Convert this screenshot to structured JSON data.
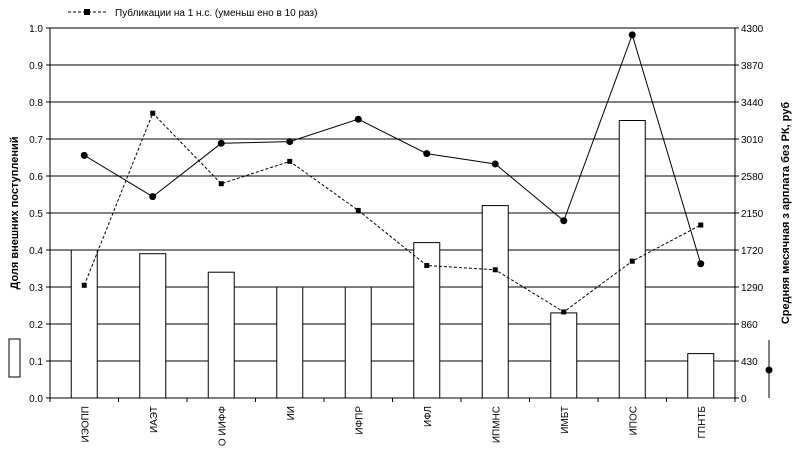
{
  "chart_data": {
    "type": "bar",
    "categories": [
      "ИЭОПП",
      "ИАЭТ",
      "О ИИФФ",
      "ИИ",
      "ИФПР",
      "ИФЛ",
      "ИПМНС",
      "ИМБТ",
      "ИПОС",
      "ГПНТБ"
    ],
    "series": [
      {
        "kind": "bar",
        "axis": "left",
        "values": [
          0.4,
          0.39,
          0.34,
          0.3,
          0.3,
          0.42,
          0.52,
          0.23,
          0.75,
          0.12
        ]
      },
      {
        "kind": "line-solid",
        "axis": "right",
        "values": [
          2820,
          2340,
          2960,
          2980,
          3240,
          2840,
          2720,
          2060,
          4220,
          1560
        ]
      },
      {
        "name": "Публикации на 1 н.с. (уменьш ено в 10 раз)",
        "kind": "line-dashed",
        "axis": "right",
        "values": [
          1310,
          3310,
          2490,
          2750,
          2180,
          1540,
          1490,
          1000,
          1590,
          2010
        ]
      }
    ],
    "ylabel": "Доля внешних поступлений",
    "y2label": "Средняя месячная з арплата без РК, руб",
    "ylim": [
      0,
      1.0
    ],
    "y2lim": [
      0,
      4300
    ],
    "yticks": [
      "0.0",
      "0.1",
      "0.2",
      "0.3",
      "0.4",
      "0.5",
      "0.6",
      "0.7",
      "0.8",
      "0.9",
      "1.0"
    ],
    "y2ticks": [
      "0",
      "430",
      "860",
      "1290",
      "1720",
      "2150",
      "2580",
      "3010",
      "3440",
      "3870",
      "4300"
    ],
    "grid": true,
    "legend": "top"
  }
}
